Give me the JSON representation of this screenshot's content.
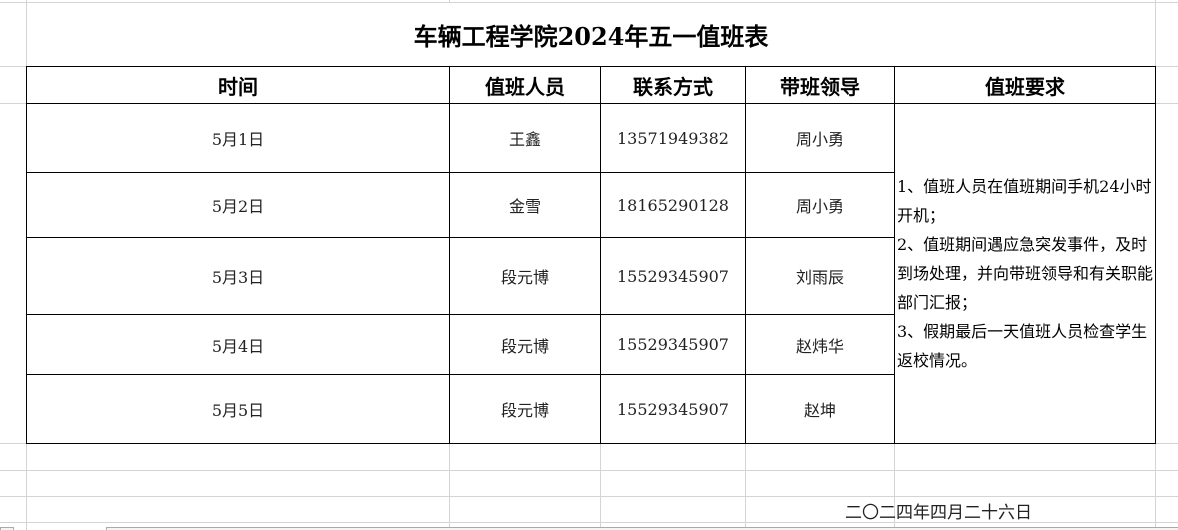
{
  "title": "车辆工程学院2024年五一值班表",
  "headers": [
    "时间",
    "值班人员",
    "联系方式",
    "带班领导",
    "值班要求"
  ],
  "rows": [
    {
      "date": "5月1日",
      "staff": "王鑫",
      "phone": "13571949382",
      "leader": "周小勇"
    },
    {
      "date": "5月2日",
      "staff": "金雪",
      "phone": "18165290128",
      "leader": "周小勇"
    },
    {
      "date": "5月3日",
      "staff": "段元博",
      "phone": "15529345907",
      "leader": "刘雨辰"
    },
    {
      "date": "5月4日",
      "staff": "段元博",
      "phone": "15529345907",
      "leader": "赵炜华"
    },
    {
      "date": "5月5日",
      "staff": "段元博",
      "phone": "15529345907",
      "leader": "赵坤"
    }
  ],
  "requirements": [
    "1、值班人员在值班期间手机24小时开机；",
    "2、值班期间遇应急突发事件，及时到场处理，并向带班领导和有关职能部门汇报；",
    "3、假期最后一天值班人员检查学生返校情况。"
  ],
  "sign_date": "二〇二四年四月二十六日"
}
